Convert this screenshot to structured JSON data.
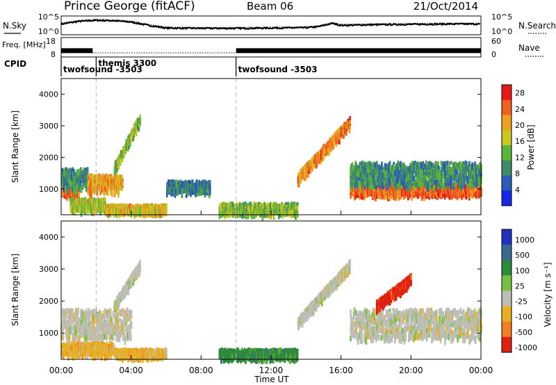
{
  "header": {
    "title": "Prince George (fitACF)",
    "beam": "Beam 06",
    "date": "21/Oct/2014"
  },
  "chart_data": [
    {
      "type": "line",
      "panel": "noise",
      "ylabel_left": "N.Sky",
      "ylabel_right": "N.Search",
      "yticks_left": [
        "10^5",
        "10^0"
      ],
      "yticks_right": [
        "10^5",
        "10^0"
      ],
      "scale": "log",
      "series": [
        {
          "values_hours": [
            0,
            1,
            2,
            3,
            4,
            5,
            6,
            8,
            10,
            12,
            14,
            14.7,
            15.5,
            16,
            18,
            20,
            22,
            24
          ],
          "values_log10": [
            3.0,
            3.8,
            4.1,
            4.0,
            3.6,
            2.6,
            1.8,
            1.7,
            1.7,
            1.8,
            1.9,
            2.2,
            3.2,
            2.6,
            2.8,
            2.9,
            3.0,
            3.0
          ]
        }
      ]
    },
    {
      "type": "line",
      "panel": "frequency",
      "ylabel_left": "Freq. [MHz]",
      "ylabel_right": "Nave",
      "yticks_left": [
        "18",
        "8"
      ],
      "yticks_right": [
        "60",
        "0"
      ],
      "freq_segments_mhz": [
        {
          "start_h": 0.0,
          "end_h": 1.8,
          "value": 11.5
        },
        {
          "start_h": 1.8,
          "end_h": 10.0,
          "value": 10.3
        },
        {
          "start_h": 10.0,
          "end_h": 24.0,
          "value": 11.5
        }
      ]
    },
    {
      "type": "table",
      "panel": "cpid",
      "label": "CPID",
      "programs": [
        {
          "start_h": 0.0,
          "name": "twofsound -3503"
        },
        {
          "start_h": 2.0,
          "name": "themis 3300"
        },
        {
          "start_h": 10.0,
          "name": "twofsound -3503"
        }
      ]
    },
    {
      "type": "heatmap",
      "panel": "power",
      "ylabel": "Slant Range [km]",
      "ylim": [
        180,
        4500
      ],
      "yticks": [
        1000,
        2000,
        3000,
        4000
      ],
      "colorbar_label": "Power [dB]",
      "colorbar_ticks": [
        4,
        8,
        12,
        16,
        20,
        24,
        28
      ],
      "colorbar_range": [
        0,
        30
      ],
      "colors": [
        "#1428e8",
        "#2a5cb8",
        "#3f8a68",
        "#5cb53a",
        "#c8c820",
        "#f0a020",
        "#f06020",
        "#e81818"
      ],
      "features": [
        {
          "t0": 0.0,
          "t1": 1.0,
          "r0": 900,
          "r1": 1100,
          "p": 24
        },
        {
          "t0": 0.0,
          "t1": 1.5,
          "r0": 1100,
          "r1": 1700,
          "p": 10
        },
        {
          "t0": 1.5,
          "t1": 3.5,
          "r0": 1000,
          "r1": 1500,
          "p": 20
        },
        {
          "t0": 3.0,
          "t1": 4.5,
          "r0": 1600,
          "r1": 3500,
          "p": 14
        },
        {
          "t0": 0.5,
          "t1": 2.5,
          "r0": 400,
          "r1": 750,
          "p": 16
        },
        {
          "t0": 2.5,
          "t1": 6.0,
          "r0": 350,
          "r1": 550,
          "p": 18
        },
        {
          "t0": 6.0,
          "t1": 8.5,
          "r0": 1000,
          "r1": 1300,
          "p": 8
        },
        {
          "t0": 9.0,
          "t1": 13.5,
          "r0": 300,
          "r1": 600,
          "p": 14
        },
        {
          "t0": 13.5,
          "t1": 16.5,
          "r0": 1300,
          "r1": 3400,
          "p": 22
        },
        {
          "t0": 16.5,
          "t1": 24.0,
          "r0": 900,
          "r1": 1200,
          "p": 24
        },
        {
          "t0": 16.5,
          "t1": 24.0,
          "r0": 1200,
          "r1": 1900,
          "p": 10
        }
      ]
    },
    {
      "type": "heatmap",
      "panel": "velocity",
      "ylabel": "Slant Range [km]",
      "xlabel": "Time UT",
      "ylim": [
        180,
        4500
      ],
      "yticks": [
        1000,
        2000,
        3000,
        4000
      ],
      "xticks": [
        "00:00",
        "04:00",
        "08:00",
        "12:00",
        "16:00",
        "20:00",
        "00:00"
      ],
      "colorbar_label": "Velocity [m s⁻¹]",
      "colorbar_ticks": [
        "1000",
        "500",
        "100",
        "25",
        "-25",
        "-100",
        "-500",
        "-1000"
      ],
      "colors": [
        "#2030c0",
        "#3a6a90",
        "#2d8a3a",
        "#78c040",
        "#bebeb8",
        "#e8b020",
        "#f08020",
        "#e02010"
      ],
      "features": [
        {
          "t0": 0.0,
          "t1": 4.0,
          "r0": 900,
          "r1": 1800,
          "v": 4
        },
        {
          "t0": 3.0,
          "t1": 4.5,
          "r0": 1800,
          "r1": 3300,
          "v": 4
        },
        {
          "t0": 0.0,
          "t1": 3.0,
          "r0": 400,
          "r1": 750,
          "v": 5
        },
        {
          "t0": 3.0,
          "t1": 6.0,
          "r0": 350,
          "r1": 550,
          "v": 5
        },
        {
          "t0": 9.0,
          "t1": 13.5,
          "r0": 300,
          "r1": 550,
          "v": 2
        },
        {
          "t0": 13.5,
          "t1": 16.5,
          "r0": 1300,
          "r1": 3400,
          "v": 4
        },
        {
          "t0": 16.5,
          "t1": 24.0,
          "r0": 900,
          "r1": 1800,
          "v": 4
        },
        {
          "t0": 18.0,
          "t1": 20.0,
          "r0": 1800,
          "r1": 2800,
          "v": 7
        }
      ]
    }
  ]
}
